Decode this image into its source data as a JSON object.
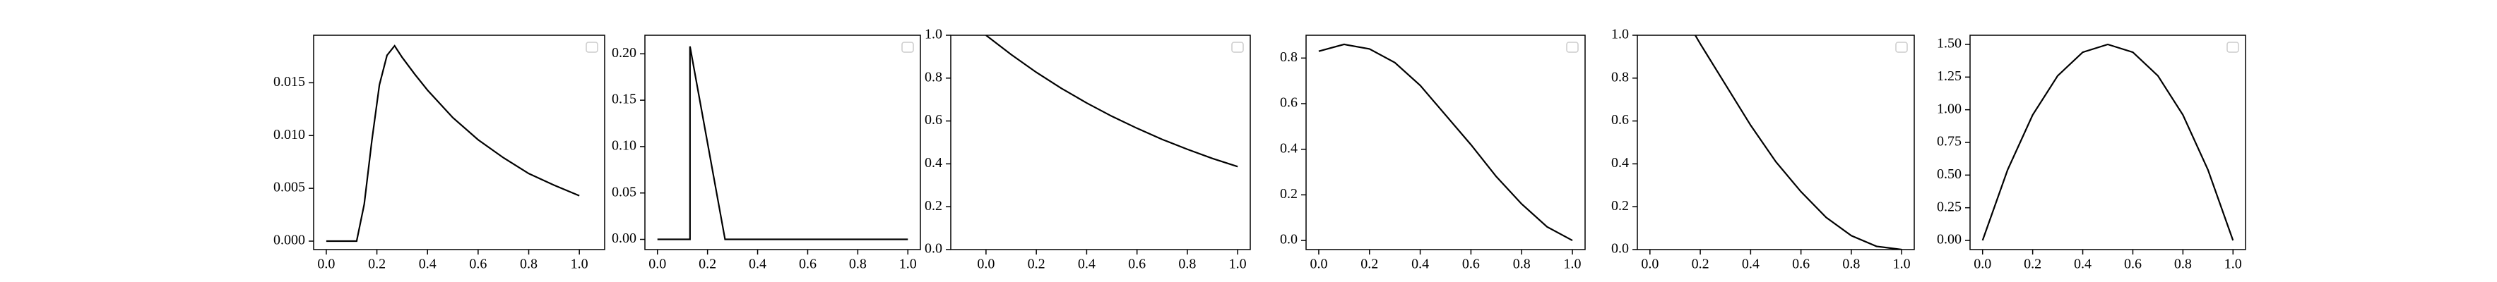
{
  "chart_data": [
    {
      "type": "line",
      "color": "#000000",
      "x": [
        0,
        0.05,
        0.1,
        0.12,
        0.15,
        0.18,
        0.21,
        0.24,
        0.27,
        0.3,
        0.35,
        0.4,
        0.5,
        0.6,
        0.7,
        0.8,
        0.9,
        1.0
      ],
      "values": [
        0,
        0,
        0,
        0,
        0.0035,
        0.0095,
        0.0148,
        0.0176,
        0.0185,
        0.0174,
        0.0158,
        0.0143,
        0.0117,
        0.0096,
        0.0079,
        0.0064,
        0.0053,
        0.0043
      ],
      "xlim": [
        -0.05,
        1.1
      ],
      "ylim": [
        -0.0008,
        0.0195
      ],
      "xticks": [
        {
          "value": 0,
          "label": "0.0"
        },
        0.2,
        0.4,
        0.6,
        0.8,
        {
          "value": 1,
          "label": "1.0"
        }
      ],
      "yticks": [
        {
          "value": 0,
          "label": "0.000"
        },
        0.005,
        {
          "value": 0.01,
          "label": "0.010"
        },
        0.015
      ]
    },
    {
      "type": "line",
      "color": "#000000",
      "x": [
        0,
        0.13,
        0.13,
        0.27,
        1.0
      ],
      "values": [
        0,
        0,
        0.208,
        0,
        0
      ],
      "xlim": [
        -0.05,
        1.05
      ],
      "ylim": [
        -0.011,
        0.22
      ],
      "xticks": [
        {
          "value": 0,
          "label": "0.0"
        },
        0.2,
        0.4,
        0.6,
        0.8,
        {
          "value": 1,
          "label": "1.0"
        }
      ],
      "yticks": [
        {
          "value": 0,
          "label": "0.00"
        },
        0.05,
        {
          "value": 0.1,
          "label": "0.10"
        },
        0.15,
        {
          "value": 0.2,
          "label": "0.20"
        }
      ]
    },
    {
      "type": "line",
      "color": "#000000",
      "x": [
        0,
        0.1,
        0.2,
        0.3,
        0.4,
        0.5,
        0.6,
        0.7,
        0.8,
        0.9,
        1.0
      ],
      "values": [
        1.0,
        0.91,
        0.827,
        0.752,
        0.684,
        0.622,
        0.566,
        0.514,
        0.468,
        0.425,
        0.387
      ],
      "xlim": [
        -0.14,
        1.05
      ],
      "ylim": [
        0,
        1
      ],
      "xticks": [
        {
          "value": 0,
          "label": "0.0"
        },
        0.2,
        0.4,
        0.6,
        0.8,
        {
          "value": 1,
          "label": "1.0"
        }
      ],
      "yticks": [
        {
          "value": 0,
          "label": "0.0"
        },
        0.2,
        0.4,
        0.6,
        0.8,
        {
          "value": 1,
          "label": "1.0"
        }
      ]
    },
    {
      "type": "line",
      "color": "#000000",
      "x": [
        0,
        0.1,
        0.2,
        0.3,
        0.4,
        0.5,
        0.6,
        0.7,
        0.8,
        0.9,
        1.0
      ],
      "values": [
        0.83,
        0.86,
        0.84,
        0.78,
        0.68,
        0.55,
        0.42,
        0.28,
        0.16,
        0.06,
        0
      ],
      "xlim": [
        -0.05,
        1.05
      ],
      "ylim": [
        -0.04,
        0.9
      ],
      "xticks": [
        {
          "value": 0,
          "label": "0.0"
        },
        0.2,
        0.4,
        0.6,
        0.8,
        {
          "value": 1,
          "label": "1.0"
        }
      ],
      "yticks": [
        {
          "value": 0,
          "label": "0.0"
        },
        0.2,
        0.4,
        0.6,
        0.8
      ]
    },
    {
      "type": "line",
      "color": "#000000",
      "x": [
        0.18,
        0.2,
        0.3,
        0.4,
        0.5,
        0.6,
        0.7,
        0.8,
        0.9,
        1.0
      ],
      "values": [
        1.0,
        0.96,
        0.77,
        0.58,
        0.41,
        0.27,
        0.15,
        0.065,
        0.015,
        0
      ],
      "xlim": [
        -0.05,
        1.05
      ],
      "ylim": [
        0,
        1
      ],
      "xticks": [
        {
          "value": 0,
          "label": "0.0"
        },
        0.2,
        0.4,
        0.6,
        0.8,
        {
          "value": 1,
          "label": "1.0"
        }
      ],
      "yticks": [
        {
          "value": 0,
          "label": "0.0"
        },
        0.2,
        0.4,
        0.6,
        0.8,
        {
          "value": 1,
          "label": "1.0"
        }
      ]
    },
    {
      "type": "line",
      "color": "#000000",
      "x": [
        0,
        0.1,
        0.2,
        0.3,
        0.4,
        0.5,
        0.6,
        0.7,
        0.8,
        0.9,
        1.0
      ],
      "values": [
        0,
        0.54,
        0.96,
        1.26,
        1.44,
        1.5,
        1.44,
        1.26,
        0.96,
        0.54,
        0
      ],
      "xlim": [
        -0.05,
        1.05
      ],
      "ylim": [
        -0.07,
        1.57
      ],
      "xticks": [
        {
          "value": 0,
          "label": "0.0"
        },
        0.2,
        0.4,
        0.6,
        0.8,
        {
          "value": 1,
          "label": "1.0"
        }
      ],
      "yticks": [
        {
          "value": 0,
          "label": "0.00"
        },
        0.25,
        {
          "value": 0.5,
          "label": "0.50"
        },
        0.75,
        {
          "value": 1,
          "label": "1.00"
        },
        1.25,
        {
          "value": 1.5,
          "label": "1.50"
        }
      ]
    }
  ]
}
